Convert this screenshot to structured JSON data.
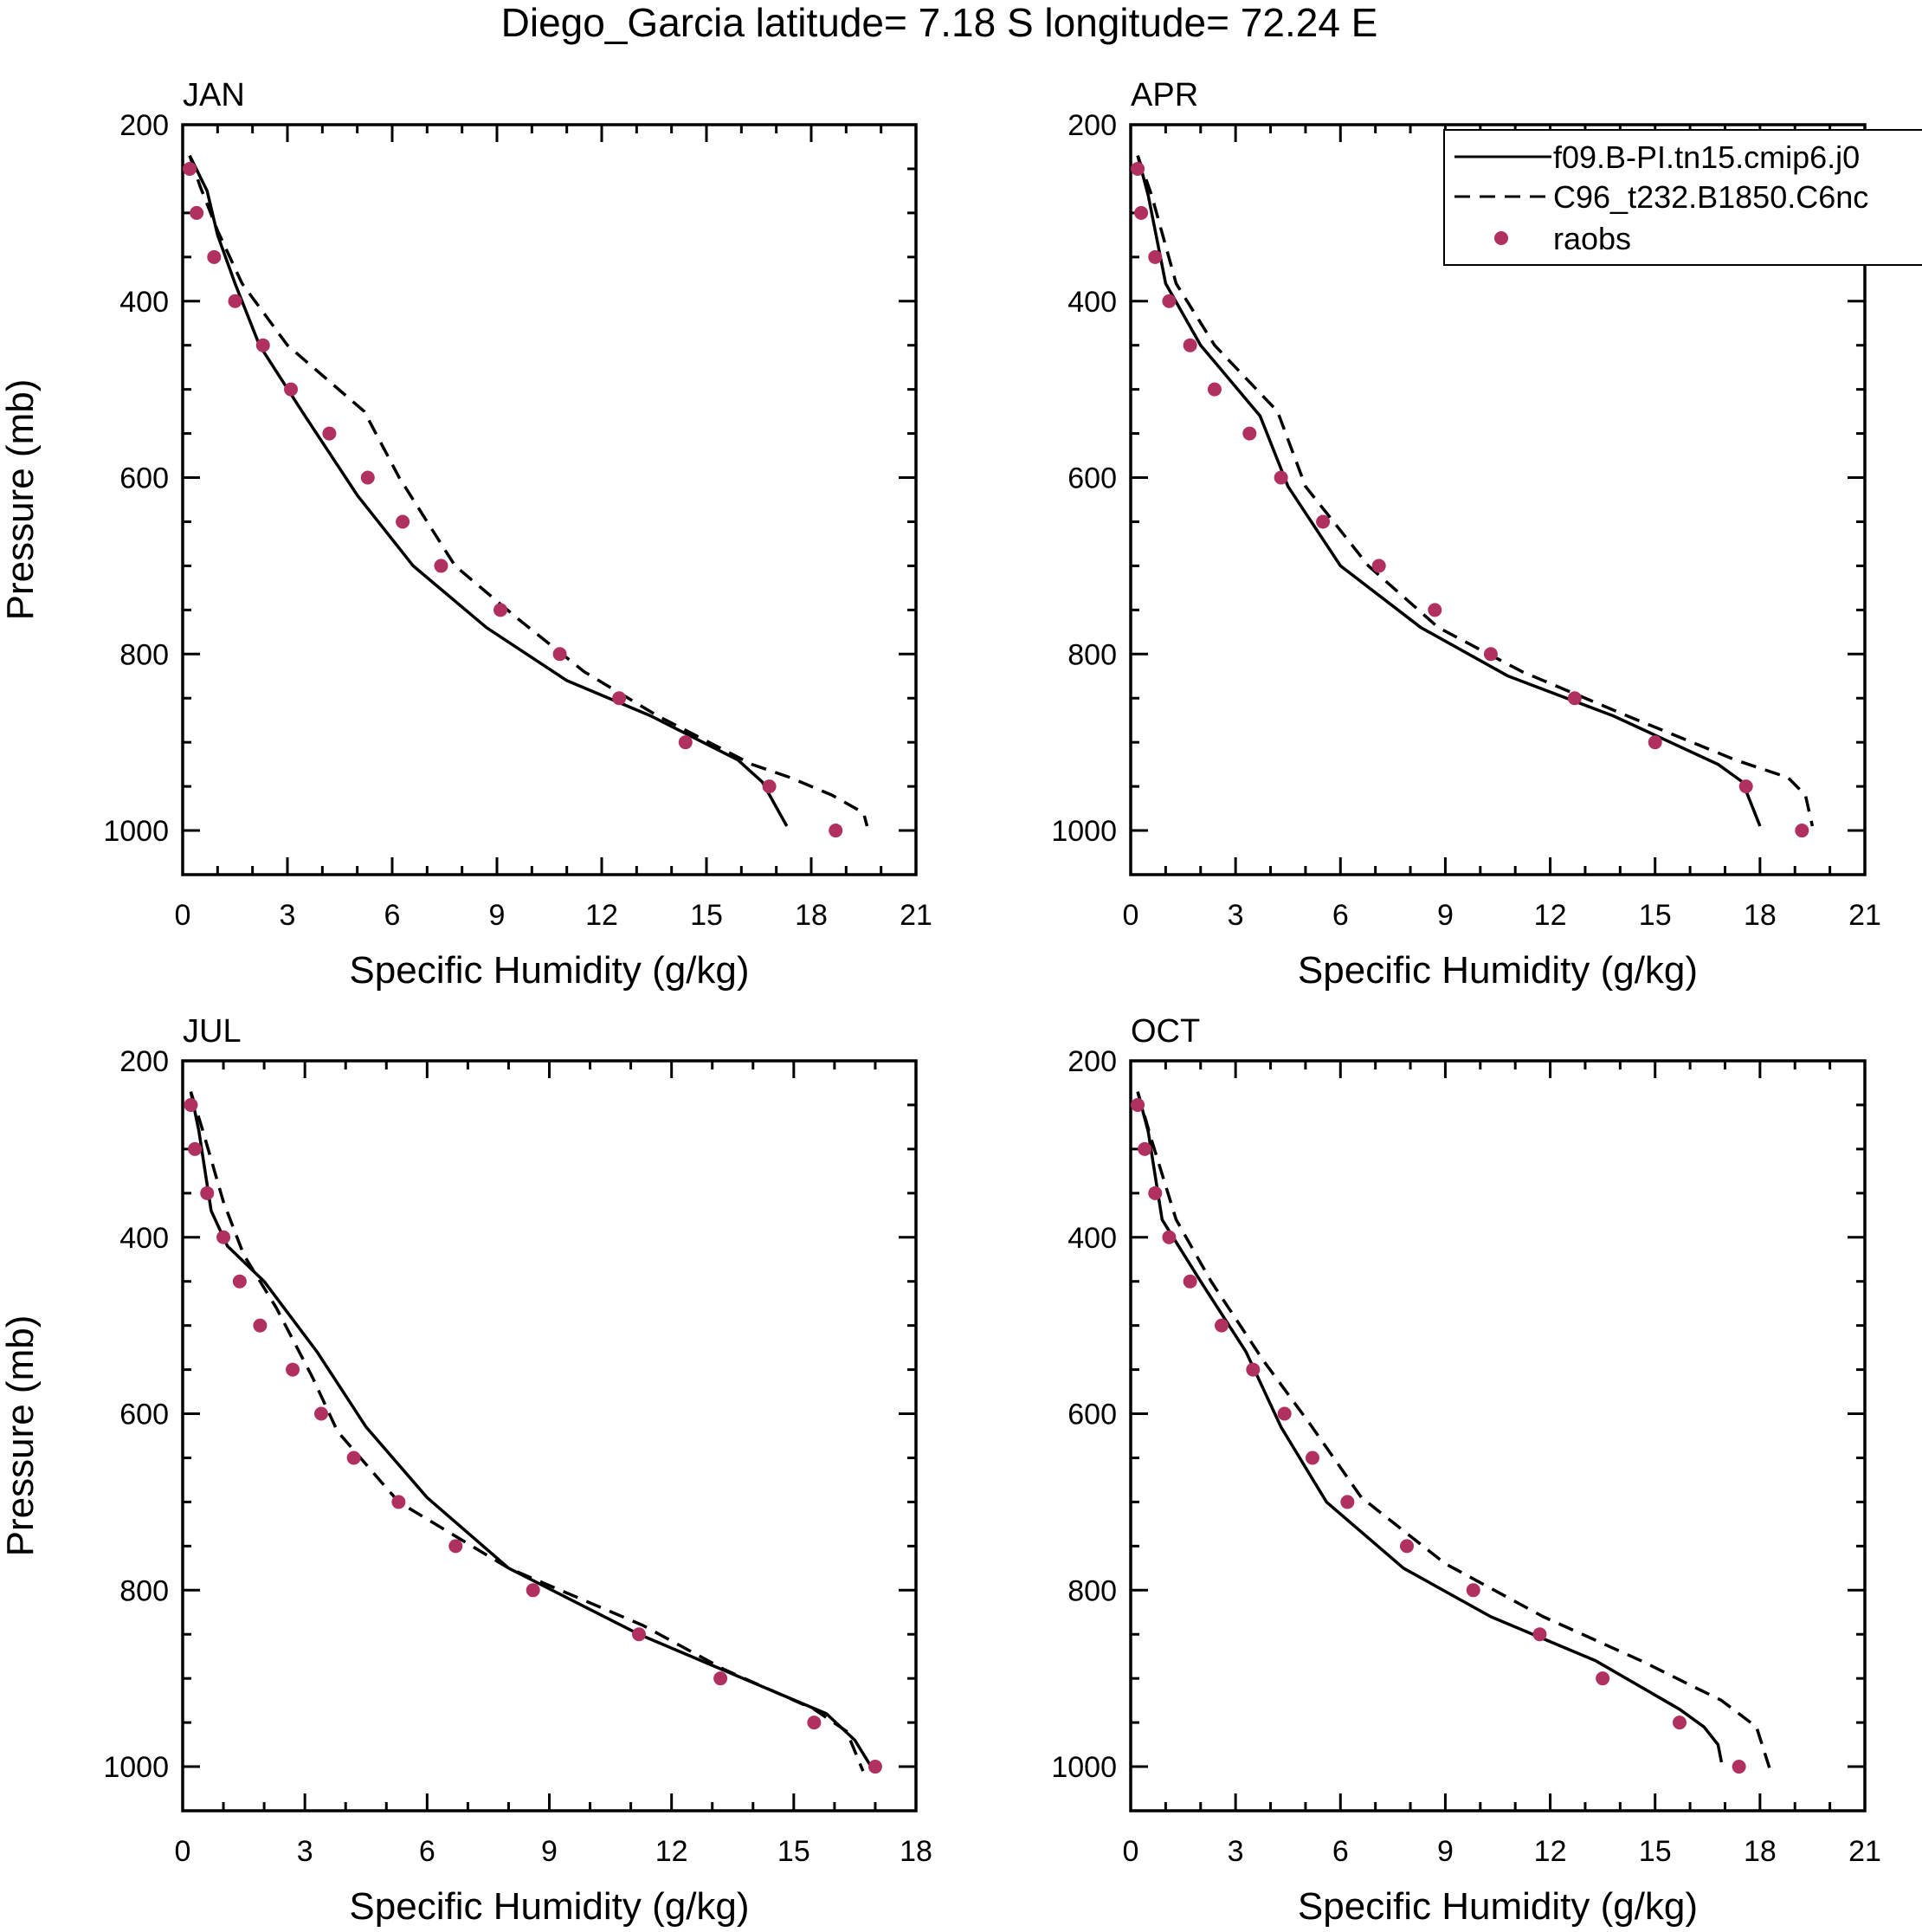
{
  "title": "Diego_Garcia  latitude= 7.18 S longitude= 72.24 E",
  "legend": {
    "placement": "top-right of APR panel",
    "entries": [
      {
        "label": "f09.B-PI.tn15.cmip6.j0",
        "style": "solid"
      },
      {
        "label": "C96_t232.B1850.C6nc",
        "style": "dashed"
      },
      {
        "label": "raobs",
        "style": "marker"
      }
    ]
  },
  "colors": {
    "model_lines": "#000000",
    "raobs": "#b03060",
    "axes": "#000000",
    "background": "#ffffff"
  },
  "chart_data": [
    {
      "type": "line",
      "panel": "JAN",
      "title": "JAN",
      "xlabel": "Specific Humidity (g/kg)",
      "ylabel": "Pressure (mb)",
      "xlim": [
        0,
        21
      ],
      "ylim": [
        200,
        1050
      ],
      "y_inverted": true,
      "xticks": [
        "0",
        "3",
        "6",
        "9",
        "12",
        "15",
        "18",
        "21"
      ],
      "yticks": [
        "200",
        "400",
        "600",
        "800",
        "1000"
      ],
      "series": [
        {
          "name": "f09.B-PI.tn15.cmip6.j0",
          "style": "solid",
          "x": [
            0.2,
            0.7,
            1.0,
            1.5,
            2.2,
            3.5,
            5.0,
            6.6,
            8.7,
            11.0,
            13.4,
            15.9,
            16.6,
            17.3
          ],
          "y": [
            235,
            275,
            325,
            380,
            450,
            530,
            620,
            700,
            770,
            830,
            870,
            920,
            945,
            995
          ]
        },
        {
          "name": "C96_t232.B1850.C6nc",
          "style": "dashed",
          "x": [
            0.2,
            0.5,
            1.0,
            1.7,
            3.0,
            5.2,
            6.2,
            7.8,
            9.6,
            11.5,
            13.6,
            16.3,
            17.4,
            18.6,
            19.5,
            19.6
          ],
          "y": [
            235,
            270,
            320,
            380,
            450,
            525,
            600,
            700,
            760,
            820,
            870,
            925,
            940,
            960,
            980,
            995
          ]
        },
        {
          "name": "raobs",
          "style": "marker",
          "x": [
            0.2,
            0.4,
            0.9,
            1.5,
            2.3,
            3.1,
            4.2,
            5.3,
            6.3,
            7.4,
            9.1,
            10.8,
            12.5,
            14.4,
            16.8,
            18.7
          ],
          "y": [
            250,
            300,
            350,
            400,
            450,
            500,
            550,
            600,
            650,
            700,
            750,
            800,
            850,
            900,
            950,
            1000
          ]
        }
      ]
    },
    {
      "type": "line",
      "panel": "APR",
      "title": "APR",
      "xlabel": "Specific Humidity (g/kg)",
      "ylabel": "",
      "xlim": [
        0,
        21
      ],
      "ylim": [
        200,
        1050
      ],
      "y_inverted": true,
      "xticks": [
        "0",
        "3",
        "6",
        "9",
        "12",
        "15",
        "18",
        "21"
      ],
      "yticks": [
        "200",
        "400",
        "600",
        "800",
        "1000"
      ],
      "series": [
        {
          "name": "f09.B-PI.tn15.cmip6.j0",
          "style": "solid",
          "x": [
            0.2,
            0.5,
            1.0,
            2.0,
            3.7,
            4.5,
            6.0,
            8.3,
            10.8,
            13.8,
            16.8,
            17.5,
            18.0
          ],
          "y": [
            235,
            280,
            380,
            450,
            530,
            610,
            700,
            770,
            825,
            870,
            925,
            945,
            995
          ]
        },
        {
          "name": "C96_t232.B1850.C6nc",
          "style": "dashed",
          "x": [
            0.2,
            0.6,
            1.3,
            2.4,
            4.2,
            5.0,
            6.8,
            8.8,
            11.2,
            14.2,
            17.3,
            18.8,
            19.3,
            19.5
          ],
          "y": [
            235,
            280,
            380,
            450,
            525,
            610,
            700,
            770,
            820,
            870,
            920,
            940,
            960,
            995
          ]
        },
        {
          "name": "raobs",
          "style": "marker",
          "x": [
            0.2,
            0.3,
            0.7,
            1.1,
            1.7,
            2.4,
            3.4,
            4.3,
            5.5,
            7.1,
            8.7,
            10.3,
            12.7,
            15.0,
            17.6,
            19.2
          ],
          "y": [
            250,
            300,
            350,
            400,
            450,
            500,
            550,
            600,
            650,
            700,
            750,
            800,
            850,
            900,
            950,
            1000
          ]
        }
      ]
    },
    {
      "type": "line",
      "panel": "JUL",
      "title": "JUL",
      "xlabel": "Specific Humidity (g/kg)",
      "ylabel": "Pressure (mb)",
      "xlim": [
        0,
        18
      ],
      "ylim": [
        200,
        1050
      ],
      "y_inverted": true,
      "xticks": [
        "0",
        "3",
        "6",
        "9",
        "12",
        "15",
        "18"
      ],
      "yticks": [
        "200",
        "400",
        "600",
        "800",
        "1000"
      ],
      "series": [
        {
          "name": "f09.B-PI.tn15.cmip6.j0",
          "style": "solid",
          "x": [
            0.2,
            0.4,
            0.7,
            1.1,
            2.0,
            3.3,
            4.5,
            6.0,
            8.0,
            11.2,
            13.5,
            15.8,
            16.5,
            16.9
          ],
          "y": [
            235,
            280,
            370,
            410,
            450,
            530,
            615,
            695,
            775,
            850,
            895,
            940,
            970,
            1000
          ]
        },
        {
          "name": "C96_t232.B1850.C6nc",
          "style": "dashed",
          "x": [
            0.2,
            0.5,
            1.0,
            1.5,
            2.3,
            3.2,
            3.8,
            5.3,
            8.0,
            11.3,
            13.3,
            15.5,
            16.3,
            16.7
          ],
          "y": [
            235,
            280,
            360,
            420,
            480,
            560,
            620,
            700,
            775,
            840,
            890,
            935,
            960,
            1005
          ]
        },
        {
          "name": "raobs",
          "style": "marker",
          "x": [
            0.2,
            0.3,
            0.6,
            1.0,
            1.4,
            1.9,
            2.7,
            3.4,
            4.2,
            5.3,
            6.7,
            8.6,
            11.2,
            13.2,
            15.5,
            17.0
          ],
          "y": [
            250,
            300,
            350,
            400,
            450,
            500,
            550,
            600,
            650,
            700,
            750,
            800,
            850,
            900,
            950,
            1000
          ]
        }
      ]
    },
    {
      "type": "line",
      "panel": "OCT",
      "title": "OCT",
      "xlabel": "Specific Humidity (g/kg)",
      "ylabel": "",
      "xlim": [
        0,
        21
      ],
      "ylim": [
        200,
        1050
      ],
      "y_inverted": true,
      "xticks": [
        "0",
        "3",
        "6",
        "9",
        "12",
        "15",
        "18",
        "21"
      ],
      "yticks": [
        "200",
        "400",
        "600",
        "800",
        "1000"
      ],
      "series": [
        {
          "name": "f09.B-PI.tn15.cmip6.j0",
          "style": "solid",
          "x": [
            0.2,
            0.5,
            0.9,
            2.0,
            3.3,
            4.3,
            5.6,
            7.8,
            10.3,
            13.3,
            15.7,
            16.4,
            16.8,
            16.9
          ],
          "y": [
            235,
            280,
            380,
            450,
            530,
            615,
            700,
            775,
            830,
            880,
            935,
            955,
            975,
            995
          ]
        },
        {
          "name": "C96_t232.B1850.C6nc",
          "style": "dashed",
          "x": [
            0.2,
            0.6,
            1.3,
            2.3,
            3.8,
            5.1,
            6.6,
            9.0,
            11.8,
            14.6,
            16.9,
            17.9,
            18.3
          ],
          "y": [
            235,
            290,
            380,
            450,
            540,
            610,
            695,
            770,
            830,
            880,
            925,
            955,
            1005
          ]
        },
        {
          "name": "raobs",
          "style": "marker",
          "x": [
            0.2,
            0.4,
            0.7,
            1.1,
            1.7,
            2.6,
            3.5,
            4.4,
            5.2,
            6.2,
            7.9,
            9.8,
            11.7,
            13.5,
            15.7,
            17.4
          ],
          "y": [
            250,
            300,
            350,
            400,
            450,
            500,
            550,
            600,
            650,
            700,
            750,
            800,
            850,
            900,
            950,
            1000
          ]
        }
      ]
    }
  ]
}
